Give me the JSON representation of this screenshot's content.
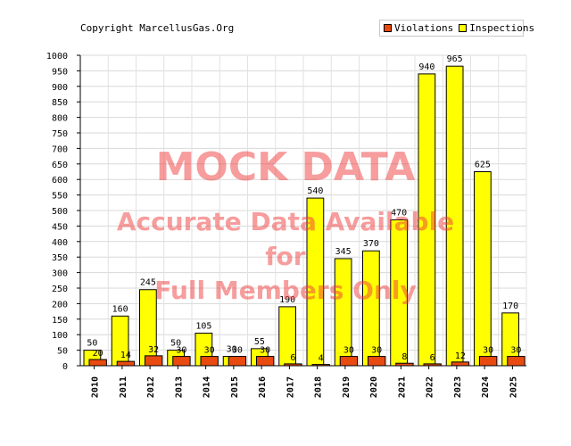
{
  "header": {
    "copyright": "Copyright MarcellusGas.Org"
  },
  "legend": {
    "items": [
      {
        "label": "Violations",
        "color": "#e84a10"
      },
      {
        "label": "Inspections",
        "color": "#ffff00"
      }
    ]
  },
  "watermark": {
    "line1": "MOCK DATA",
    "line2": "Accurate Data Available",
    "line3": "for",
    "line4": "Full Members Only"
  },
  "chart_data": {
    "type": "bar",
    "categories": [
      "2010",
      "2011",
      "2012",
      "2013",
      "2014",
      "2015",
      "2016",
      "2017",
      "2018",
      "2019",
      "2020",
      "2021",
      "2022",
      "2023",
      "2024",
      "2025"
    ],
    "series": [
      {
        "name": "Inspections",
        "color": "#ffff00",
        "values": [
          50,
          160,
          245,
          50,
          105,
          30,
          55,
          190,
          540,
          345,
          370,
          470,
          940,
          965,
          625,
          170
        ]
      },
      {
        "name": "Violations",
        "color": "#e84a10",
        "values": [
          20,
          14,
          32,
          30,
          30,
          30,
          30,
          6,
          4,
          30,
          30,
          8,
          6,
          12,
          30,
          30
        ]
      }
    ],
    "ylim": [
      0,
      1000
    ],
    "ytick_step": 50,
    "grid": true,
    "legend_position": "top-right"
  }
}
